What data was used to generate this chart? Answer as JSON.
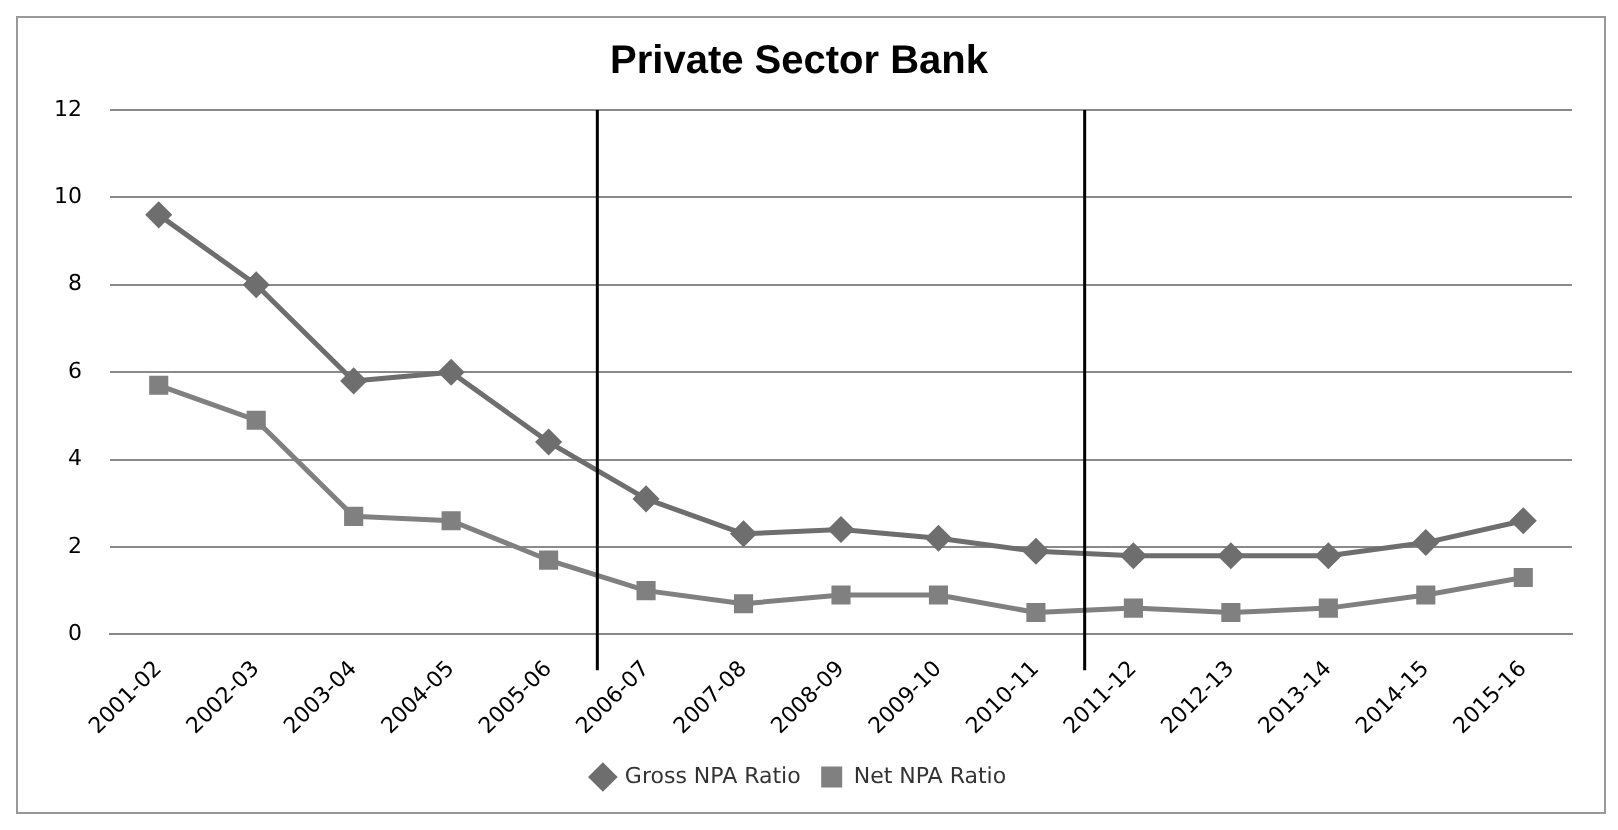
{
  "chart_data": {
    "type": "line",
    "title": "Private Sector Bank",
    "categories": [
      "2001-02",
      "2002-03",
      "2003-04",
      "2004-05",
      "2005-06",
      "2006-07",
      "2007-08",
      "2008-09",
      "2009-10",
      "2010-11",
      "2011-12",
      "2012-13",
      "2013-14",
      "2014-15",
      "2015-16"
    ],
    "series": [
      {
        "name": "Gross NPA Ratio",
        "color": "#6e6e6e",
        "marker": "diamond",
        "values": [
          9.6,
          8.0,
          5.8,
          6.0,
          4.4,
          3.1,
          2.3,
          2.4,
          2.2,
          1.9,
          1.8,
          1.8,
          1.8,
          2.1,
          2.6
        ]
      },
      {
        "name": "Net NPA Ratio",
        "color": "#808080",
        "marker": "square",
        "values": [
          5.7,
          4.9,
          2.7,
          2.6,
          1.7,
          1.0,
          0.7,
          0.9,
          0.9,
          0.5,
          0.6,
          0.5,
          0.6,
          0.9,
          1.3
        ]
      }
    ],
    "ylim": [
      0,
      12
    ],
    "yticks": [
      0,
      2,
      4,
      6,
      8,
      10,
      12
    ],
    "grid": "y",
    "legend": "bottom"
  }
}
